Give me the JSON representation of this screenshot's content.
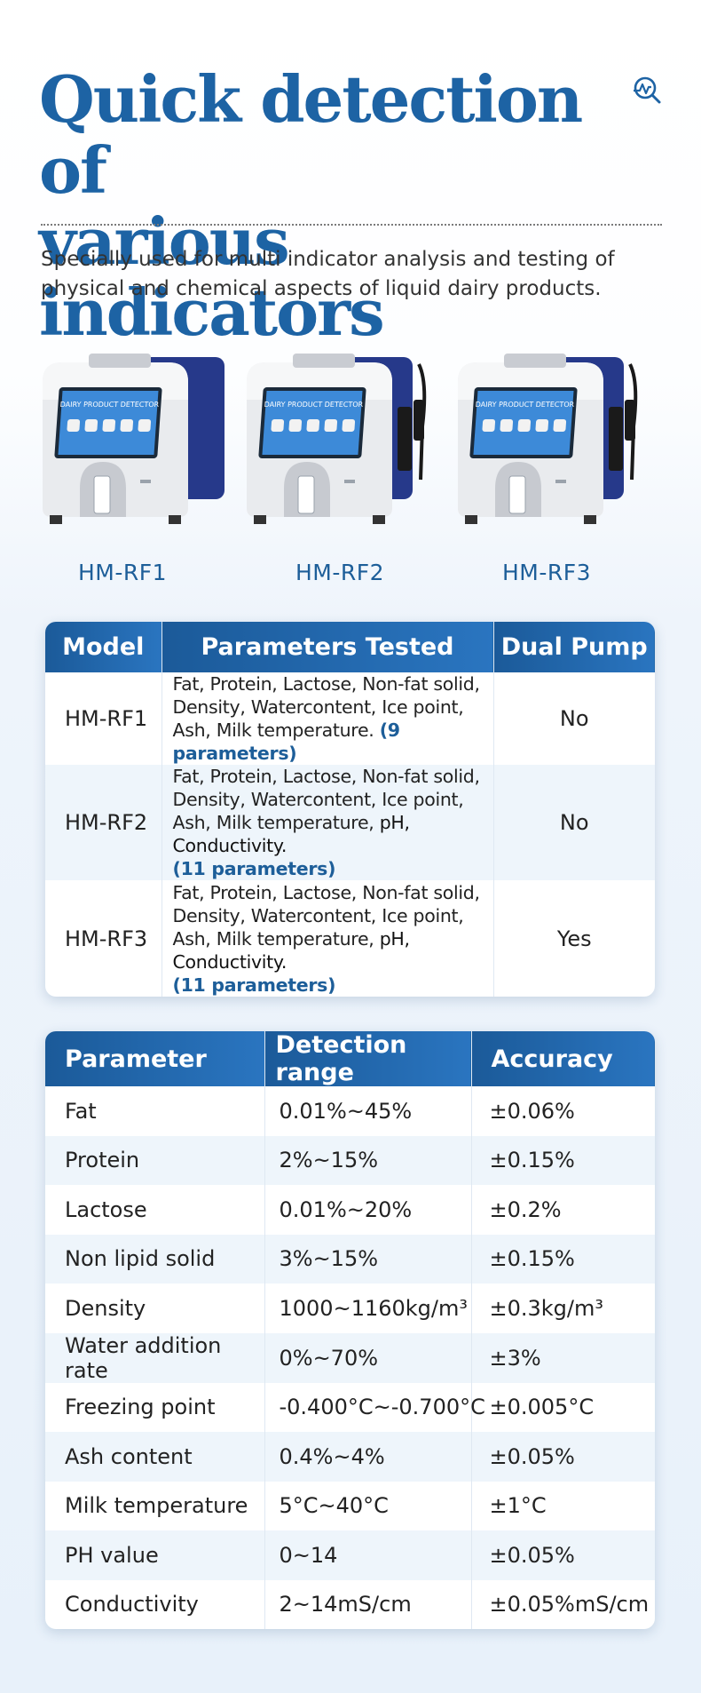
{
  "header": {
    "title_line1": "Quick detection of",
    "title_line2": "various indicators",
    "subtitle": "Specially used for multi indicator analysis and testing of physical and chemical aspects of liquid dairy products.",
    "logo_icon": "chart-magnifier-icon"
  },
  "products": [
    {
      "model": "HM-RF1",
      "screen_text": "DAIRY PRODUCT DETECTOR",
      "has_probe": false
    },
    {
      "model": "HM-RF2",
      "screen_text": "DAIRY PRODUCT DETECTOR",
      "has_probe": true
    },
    {
      "model": "HM-RF3",
      "screen_text": "DAIRY PRODUCT DETECTOR",
      "has_probe": true
    }
  ],
  "models_table": {
    "headers": [
      "Model",
      "Parameters Tested",
      "Dual Pump"
    ],
    "rows": [
      {
        "model": "HM-RF1",
        "params": "Fat, Protein, Lactose, Non-fat solid, Density, Watercontent, Ice point, Ash, Milk temperature.",
        "extra": "",
        "count": "(9 parameters)",
        "pump": "No"
      },
      {
        "model": "HM-RF2",
        "params": "Fat, Protein, Lactose, Non-fat solid, Density, Watercontent, Ice point, Ash, Milk temperature,",
        "extra": "pH, Conductivity.",
        "count": "(11 parameters)",
        "pump": "No"
      },
      {
        "model": "HM-RF3",
        "params": "Fat, Protein, Lactose, Non-fat solid, Density, Watercontent, Ice point, Ash, Milk temperature,",
        "extra": "pH, Conductivity.",
        "count": "(11 parameters)",
        "pump": "Yes"
      }
    ]
  },
  "spec_table": {
    "headers": [
      "Parameter",
      "Detection range",
      "Accuracy"
    ],
    "rows": [
      {
        "parameter": "Fat",
        "range": "0.01%~45%",
        "accuracy": "±0.06%"
      },
      {
        "parameter": "Protein",
        "range": "2%~15%",
        "accuracy": "±0.15%"
      },
      {
        "parameter": "Lactose",
        "range": "0.01%~20%",
        "accuracy": "±0.2%"
      },
      {
        "parameter": "Non lipid solid",
        "range": "3%~15%",
        "accuracy": "±0.15%"
      },
      {
        "parameter": "Density",
        "range": "1000~1160kg/m³",
        "accuracy": "±0.3kg/m³"
      },
      {
        "parameter": "Water addition rate",
        "range": "0%~70%",
        "accuracy": "±3%"
      },
      {
        "parameter": "Freezing point",
        "range": "-0.400°C~-0.700°C",
        "accuracy": "±0.005°C"
      },
      {
        "parameter": "Ash content",
        "range": "0.4%~4%",
        "accuracy": "±0.05%"
      },
      {
        "parameter": "Milk temperature",
        "range": "5°C~40°C",
        "accuracy": "±1°C"
      },
      {
        "parameter": "PH value",
        "range": "0~14",
        "accuracy": "±0.05%"
      },
      {
        "parameter": "Conductivity",
        "range": "2~14mS/cm",
        "accuracy": "±0.05%mS/cm"
      }
    ]
  },
  "colors": {
    "brand_blue": "#1d63a4",
    "header_blue": "#1b5a99",
    "row_alt": "#eef5fb",
    "device_navy": "#26398a"
  }
}
